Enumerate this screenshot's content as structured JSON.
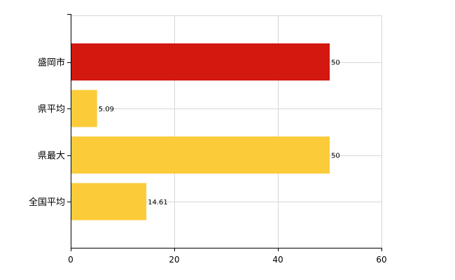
{
  "chart_data": {
    "type": "bar",
    "orientation": "horizontal",
    "categories": [
      "盛岡市",
      "県平均",
      "県最大",
      "全国平均"
    ],
    "values": [
      50,
      5.09,
      50,
      14.61
    ],
    "data_labels": [
      "50",
      "5.09",
      "50",
      "14.61"
    ],
    "bar_colors": [
      "#d2180f",
      "#fbcb3a",
      "#fbcb3a",
      "#fbcb3a"
    ],
    "xlim": [
      0,
      60
    ],
    "xticks": [
      0,
      20,
      40,
      60
    ],
    "xtick_labels": [
      "0",
      "20",
      "40",
      "60"
    ],
    "grid": true,
    "legend": "none"
  }
}
